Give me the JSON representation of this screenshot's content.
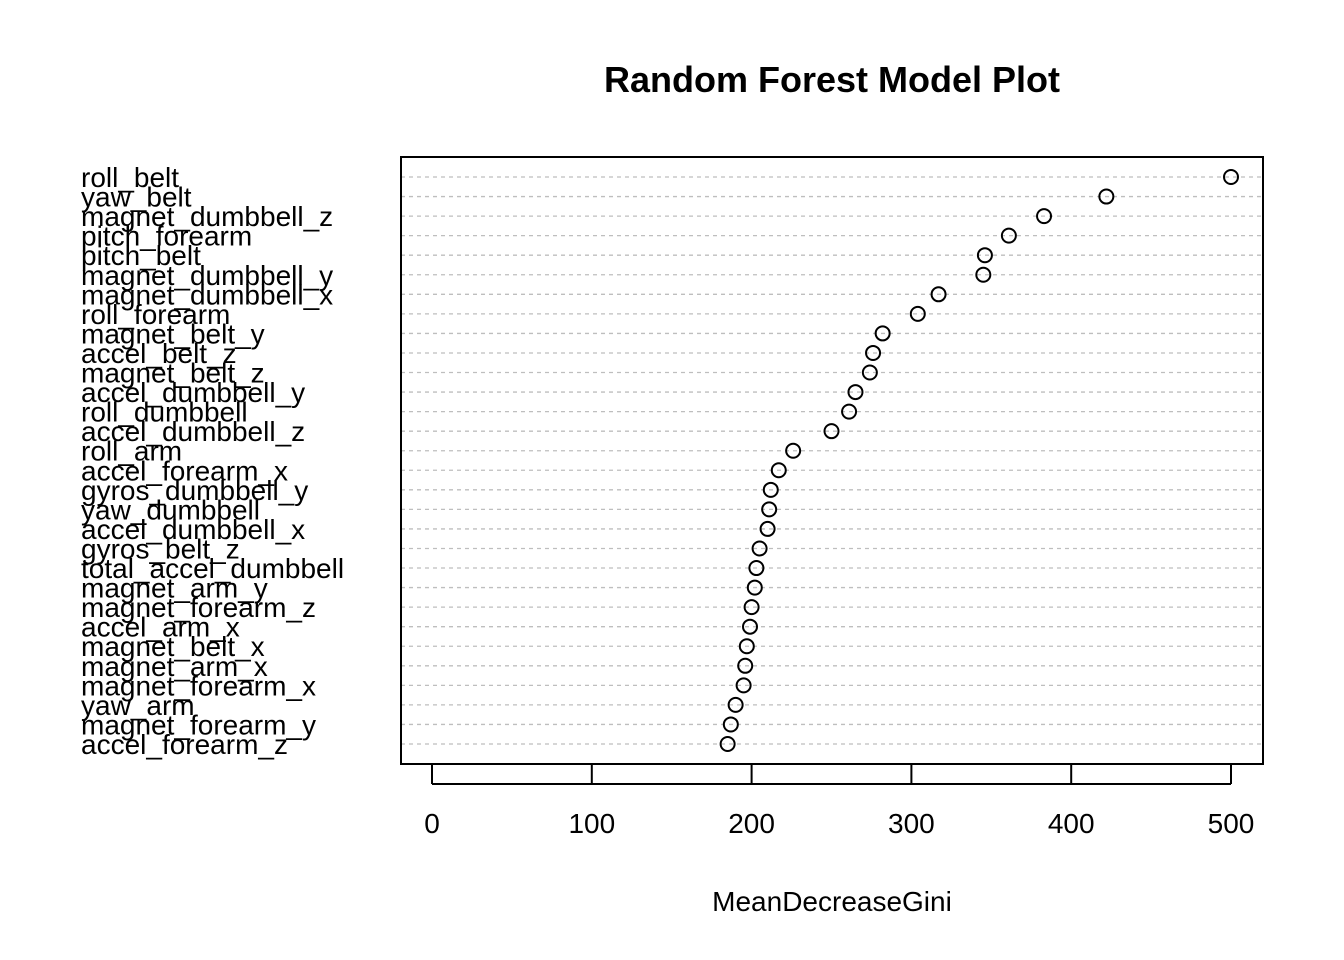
{
  "chart_data": {
    "type": "scatter",
    "title": "Random Forest Model Plot",
    "xlabel": "MeanDecreaseGini",
    "ylabel": "",
    "xlim": [
      -20,
      520
    ],
    "xticks": [
      0,
      100,
      200,
      300,
      400,
      500
    ],
    "grid": true,
    "series": [
      {
        "variables": [
          "roll_belt",
          "yaw_belt",
          "magnet_dumbbell_z",
          "pitch_forearm",
          "pitch_belt",
          "magnet_dumbbell_y",
          "magnet_dumbbell_x",
          "roll_forearm",
          "magnet_belt_y",
          "accel_belt_z",
          "magnet_belt_z",
          "accel_dumbbell_y",
          "roll_dumbbell",
          "accel_dumbbell_z",
          "roll_arm",
          "accel_forearm_x",
          "gyros_dumbbell_y",
          "yaw_dumbbell",
          "accel_dumbbell_x",
          "gyros_belt_z",
          "total_accel_dumbbell",
          "magnet_arm_y",
          "magnet_forearm_z",
          "accel_arm_x",
          "magnet_belt_x",
          "magnet_arm_x",
          "magnet_forearm_x",
          "yaw_arm",
          "magnet_forearm_y",
          "accel_forearm_z"
        ],
        "values": [
          500,
          422,
          383,
          361,
          346,
          345,
          317,
          304,
          282,
          276,
          274,
          265,
          261,
          250,
          226,
          217,
          212,
          211,
          210,
          205,
          203,
          202,
          200,
          199,
          197,
          196,
          195,
          190,
          187,
          185
        ]
      }
    ]
  }
}
